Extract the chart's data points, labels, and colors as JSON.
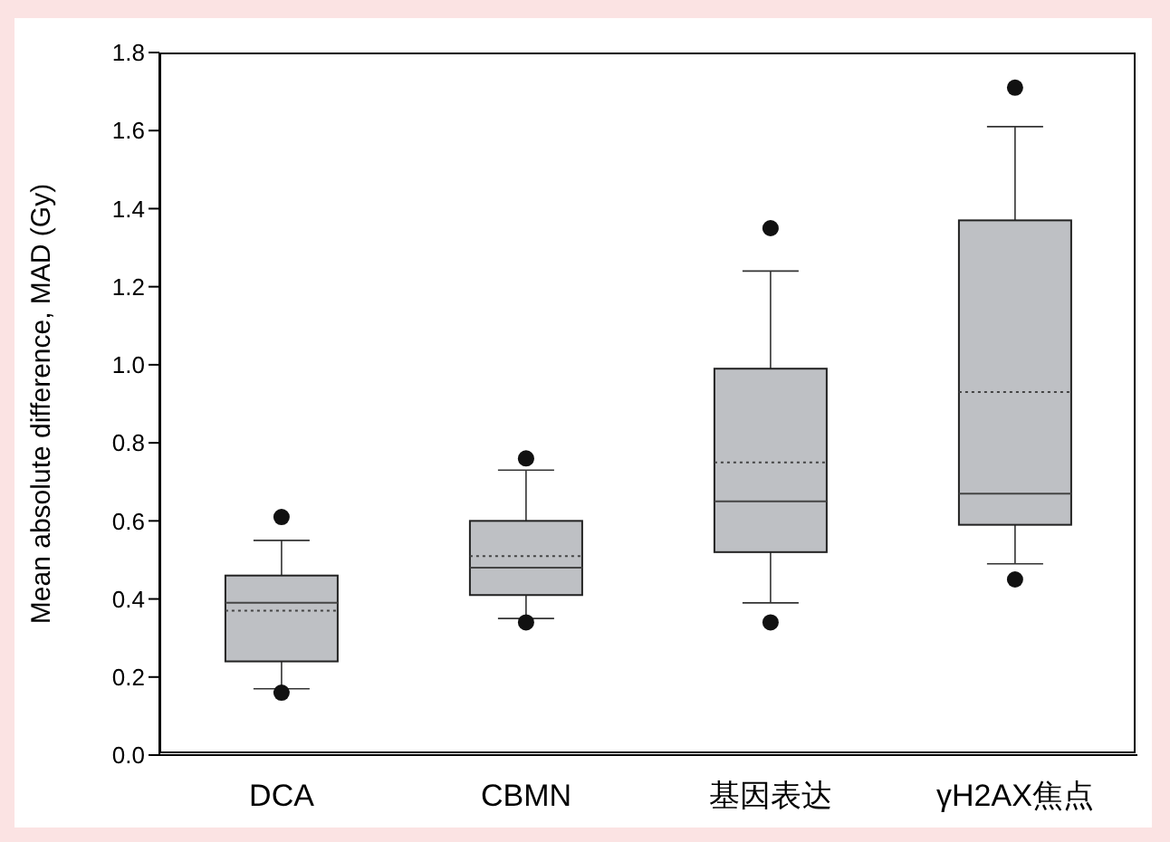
{
  "chart_data": {
    "type": "box",
    "ylabel": "Mean absolute difference, MAD (Gy)",
    "categories": [
      "DCA",
      "CBMN",
      "基因表达",
      "γH2AX焦点"
    ],
    "boxes": [
      {
        "low": 0.17,
        "q1": 0.24,
        "median": 0.39,
        "q3": 0.46,
        "high": 0.55,
        "mean": 0.37,
        "outliers": [
          0.61,
          0.16
        ]
      },
      {
        "low": 0.35,
        "q1": 0.41,
        "median": 0.48,
        "q3": 0.6,
        "high": 0.73,
        "mean": 0.51,
        "outliers": [
          0.76,
          0.34
        ]
      },
      {
        "low": 0.39,
        "q1": 0.52,
        "median": 0.65,
        "q3": 0.99,
        "high": 1.24,
        "mean": 0.75,
        "outliers": [
          1.35,
          0.34
        ]
      },
      {
        "low": 0.49,
        "q1": 0.59,
        "median": 0.67,
        "q3": 1.37,
        "high": 1.61,
        "mean": 0.93,
        "outliers": [
          1.71,
          0.45
        ]
      }
    ],
    "color": "#bec0c4",
    "ylim": [
      0,
      1.8
    ],
    "yticks": [
      {
        "value": 0,
        "label": "0.0"
      },
      0.2,
      0.4,
      0.6,
      0.8,
      {
        "value": 1,
        "label": "1.0"
      },
      1.2,
      1.4,
      1.6,
      1.8
    ]
  }
}
